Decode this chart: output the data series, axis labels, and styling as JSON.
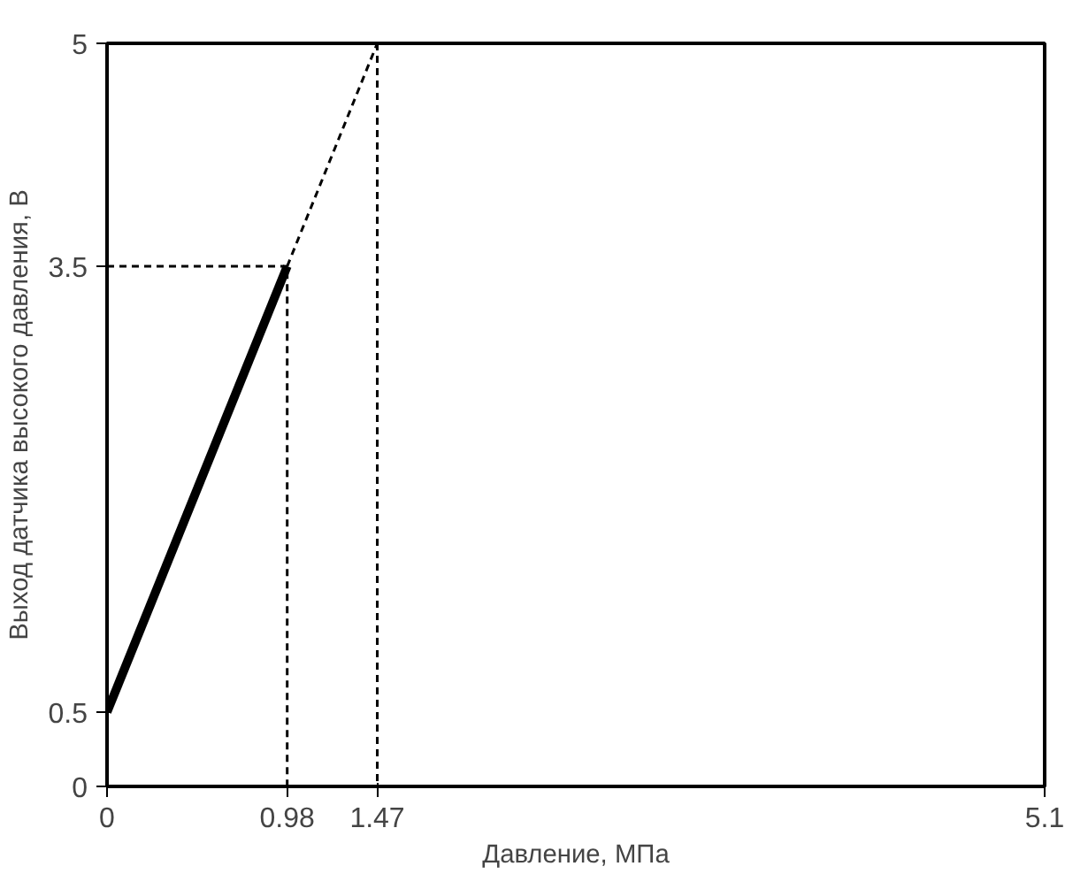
{
  "chart_data": {
    "type": "line",
    "xlabel": "Давление, МПа",
    "ylabel": "Выход датчика высокого давления, В",
    "xlim": [
      0,
      5.1
    ],
    "ylim": [
      0,
      5
    ],
    "xticks": [
      0,
      0.98,
      1.47,
      5.1
    ],
    "yticks": [
      0,
      0.5,
      3.5,
      5
    ],
    "marker": "none",
    "series": [
      {
        "color": "#000000",
        "x": [
          0,
          0.98
        ],
        "values": [
          0.5,
          3.5
        ],
        "line_style": "solid"
      },
      {
        "color": "#000000",
        "x": [
          0.98,
          1.47
        ],
        "values": [
          3.5,
          5
        ],
        "line_style": "dashed"
      },
      {
        "color": "#000000",
        "x": [
          0,
          0.98,
          0.98
        ],
        "values": [
          3.5,
          3.5,
          0
        ],
        "line_style": "dashed"
      }
    ],
    "ref_lines": [
      {
        "axis": "x",
        "value": 1.47,
        "color": "#000000",
        "line_style": "dashed"
      }
    ]
  }
}
